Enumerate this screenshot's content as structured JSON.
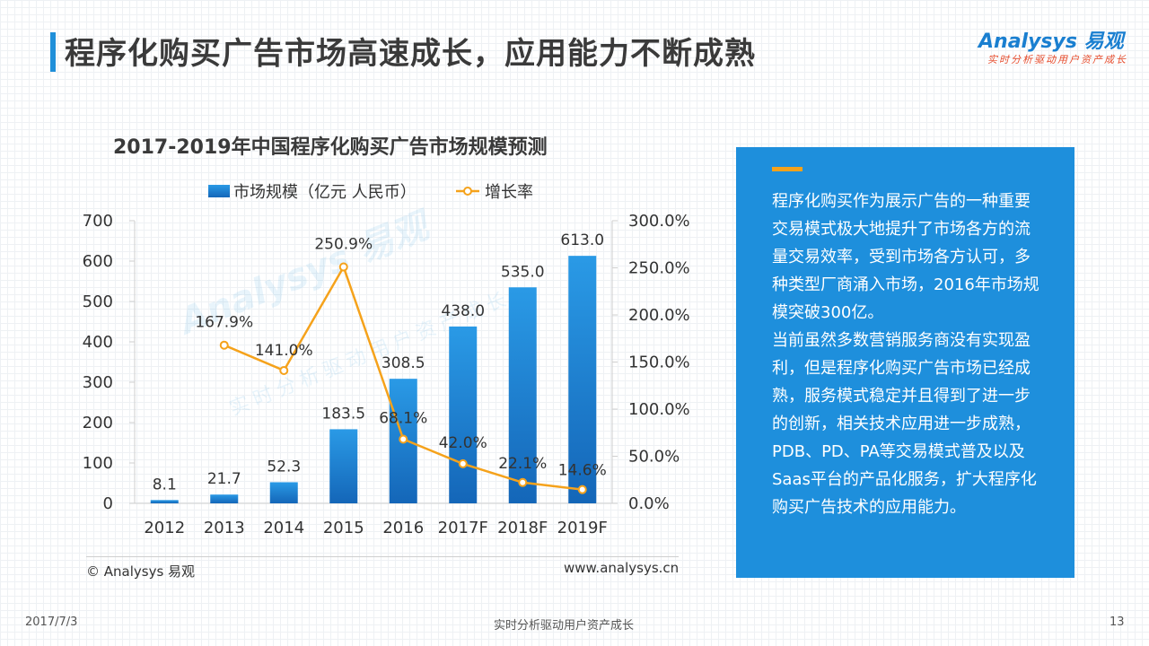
{
  "header": {
    "title": "程序化购买广告市场高速成长，应用能力不断成熟",
    "logo_main": "Analysys 易观",
    "logo_sub": "实时分析驱动用户资产成长"
  },
  "watermark": {
    "main": "Analysys 易观",
    "sub": "实时分析驱动用户资产成长"
  },
  "chart_data": {
    "type": "bar",
    "title": "2017-2019年中国程序化购买广告市场规模预测",
    "categories": [
      "2012",
      "2013",
      "2014",
      "2015",
      "2016",
      "2017F",
      "2018F",
      "2019F"
    ],
    "series": [
      {
        "name": "市场规模（亿元 人民币）",
        "type": "bar",
        "axis": "left",
        "values": [
          8.1,
          21.7,
          52.3,
          183.5,
          308.5,
          438.0,
          535.0,
          613.0
        ],
        "labels": [
          "8.1",
          "21.7",
          "52.3",
          "183.5",
          "308.5",
          "438.0",
          "535.0",
          "613.0"
        ]
      },
      {
        "name": "增长率",
        "type": "line",
        "axis": "right",
        "values": [
          null,
          167.9,
          141.0,
          250.9,
          68.1,
          42.0,
          22.1,
          14.6
        ],
        "labels": [
          "",
          "167.9%",
          "141.0%",
          "250.9%",
          "68.1%",
          "42.0%",
          "22.1%",
          "14.6%"
        ]
      }
    ],
    "y_left": {
      "min": 0,
      "max": 700,
      "ticks": [
        "0",
        "100",
        "200",
        "300",
        "400",
        "500",
        "600",
        "700"
      ]
    },
    "y_right": {
      "min": 0,
      "max": 300,
      "ticks": [
        "0.0%",
        "50.0%",
        "100.0%",
        "150.0%",
        "200.0%",
        "250.0%",
        "300.0%"
      ]
    },
    "legend_position": "top",
    "colors": {
      "bar": "#1e88d8",
      "line": "#f5a21b"
    }
  },
  "footer": {
    "source": "© Analysys  易观",
    "url": "www.analysys.cn"
  },
  "side_panel": {
    "paragraph1": "程序化购买作为展示广告的一种重要交易模式极大地提升了市场各方的流量交易效率，受到市场各方认可，多种类型厂商涌入市场，2016年市场规模突破300亿。",
    "paragraph2": "当前虽然多数营销服务商没有实现盈利，但是程序化购买广告市场已经成熟，服务模式稳定并且得到了进一步的创新，相关技术应用进一步成熟，PDB、PD、PA等交易模式普及以及Saas平台的产品化服务，扩大程序化购买广告技术的应用能力。"
  },
  "bottom": {
    "date": "2017/7/3",
    "slogan": "实时分析驱动用户资产成长",
    "page": "13"
  }
}
